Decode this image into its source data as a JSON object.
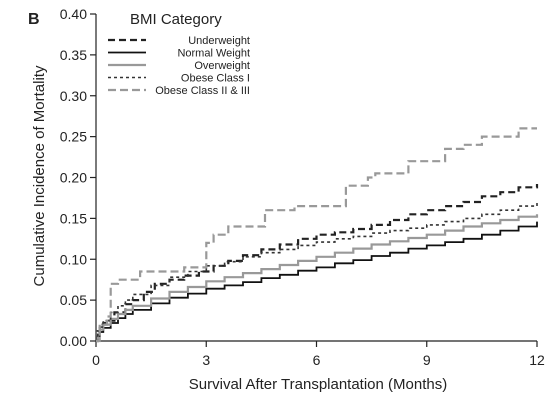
{
  "chart_data": {
    "type": "line",
    "panel_label": "B",
    "xlabel": "Survival After Transplantation (Months)",
    "ylabel": "Cumulative Incidence of Mortality",
    "xlim": [
      0,
      12
    ],
    "ylim": [
      0,
      0.4
    ],
    "x_ticks": [
      0,
      3,
      6,
      9,
      12
    ],
    "x_tick_labels": [
      "0",
      "3",
      "6",
      "9",
      "12"
    ],
    "y_ticks": [
      0,
      0.05,
      0.1,
      0.15,
      0.2,
      0.25,
      0.3,
      0.35,
      0.4
    ],
    "y_tick_labels": [
      "0.00",
      "0.05",
      "0.10",
      "0.15",
      "0.20",
      "0.25",
      "0.30",
      "0.35",
      "0.40"
    ],
    "grid": false,
    "legend": {
      "title": "BMI Category",
      "position": "top-left"
    },
    "series": [
      {
        "name": "Underweight",
        "color": "#222222",
        "dash": "7,4",
        "width": 2.2,
        "x": [
          0,
          0.05,
          0.1,
          0.2,
          0.3,
          0.5,
          0.8,
          1.0,
          1.3,
          1.6,
          2.0,
          2.4,
          2.8,
          3.2,
          3.6,
          4.0,
          4.5,
          5.0,
          5.5,
          6.0,
          6.5,
          7.0,
          7.5,
          8.0,
          8.5,
          9.0,
          9.5,
          10.0,
          10.5,
          11.0,
          11.5,
          12.0
        ],
        "y": [
          0,
          0.012,
          0.02,
          0.022,
          0.025,
          0.035,
          0.045,
          0.05,
          0.06,
          0.07,
          0.075,
          0.08,
          0.085,
          0.092,
          0.098,
          0.105,
          0.112,
          0.118,
          0.125,
          0.13,
          0.133,
          0.137,
          0.142,
          0.148,
          0.155,
          0.16,
          0.165,
          0.17,
          0.177,
          0.182,
          0.188,
          0.192
        ]
      },
      {
        "name": "Normal Weight",
        "color": "#111111",
        "dash": "",
        "width": 1.8,
        "x": [
          0,
          0.05,
          0.1,
          0.2,
          0.4,
          0.6,
          0.8,
          1.0,
          1.5,
          2.0,
          2.5,
          3.0,
          3.5,
          4.0,
          4.5,
          5.0,
          5.5,
          6.0,
          6.5,
          7.0,
          7.5,
          8.0,
          8.5,
          9.0,
          9.5,
          10.0,
          10.5,
          11.0,
          11.5,
          12.0
        ],
        "y": [
          0,
          0.006,
          0.011,
          0.016,
          0.022,
          0.028,
          0.033,
          0.038,
          0.046,
          0.053,
          0.058,
          0.064,
          0.068,
          0.072,
          0.077,
          0.081,
          0.086,
          0.09,
          0.095,
          0.099,
          0.104,
          0.108,
          0.113,
          0.117,
          0.121,
          0.125,
          0.13,
          0.135,
          0.14,
          0.146
        ]
      },
      {
        "name": "Overweight",
        "color": "#999999",
        "dash": "",
        "width": 2.2,
        "x": [
          0,
          0.05,
          0.1,
          0.2,
          0.4,
          0.6,
          0.8,
          1.0,
          1.5,
          2.0,
          2.5,
          3.0,
          3.5,
          4.0,
          4.5,
          5.0,
          5.5,
          6.0,
          6.5,
          7.0,
          7.5,
          8.0,
          8.5,
          9.0,
          9.5,
          10.0,
          10.5,
          11.0,
          11.5,
          12.0
        ],
        "y": [
          0,
          0.008,
          0.014,
          0.02,
          0.027,
          0.033,
          0.038,
          0.043,
          0.052,
          0.06,
          0.066,
          0.073,
          0.078,
          0.083,
          0.088,
          0.093,
          0.098,
          0.103,
          0.108,
          0.113,
          0.118,
          0.122,
          0.126,
          0.13,
          0.135,
          0.14,
          0.144,
          0.148,
          0.152,
          0.155
        ]
      },
      {
        "name": "Obese Class I",
        "color": "#333333",
        "dash": "3,3",
        "width": 1.6,
        "x": [
          0,
          0.05,
          0.1,
          0.2,
          0.4,
          0.6,
          0.8,
          1.0,
          1.5,
          2.0,
          2.5,
          3.0,
          3.5,
          4.0,
          4.5,
          5.0,
          5.5,
          6.0,
          6.5,
          7.0,
          7.5,
          8.0,
          8.5,
          9.0,
          9.5,
          10.0,
          10.5,
          11.0,
          11.5,
          12.0
        ],
        "y": [
          0,
          0.01,
          0.017,
          0.025,
          0.035,
          0.043,
          0.05,
          0.057,
          0.068,
          0.078,
          0.085,
          0.092,
          0.097,
          0.103,
          0.108,
          0.112,
          0.117,
          0.121,
          0.125,
          0.128,
          0.132,
          0.135,
          0.138,
          0.142,
          0.146,
          0.15,
          0.155,
          0.16,
          0.165,
          0.172
        ]
      },
      {
        "name": "Obese Class II & III",
        "color": "#999999",
        "dash": "8,4",
        "width": 2.2,
        "x": [
          0,
          0.1,
          0.3,
          0.4,
          0.6,
          1.0,
          1.2,
          2.0,
          2.4,
          2.9,
          3.0,
          3.2,
          3.6,
          4.0,
          4.6,
          5.4,
          6.0,
          6.8,
          7.1,
          7.4,
          7.6,
          8.0,
          8.5,
          9.0,
          9.5,
          10.0,
          10.5,
          11.0,
          11.5,
          12.0
        ],
        "y": [
          0,
          0.02,
          0.03,
          0.07,
          0.075,
          0.075,
          0.085,
          0.085,
          0.09,
          0.09,
          0.12,
          0.13,
          0.14,
          0.14,
          0.16,
          0.165,
          0.165,
          0.19,
          0.19,
          0.2,
          0.205,
          0.205,
          0.22,
          0.22,
          0.235,
          0.24,
          0.25,
          0.25,
          0.26,
          0.26
        ]
      }
    ]
  }
}
